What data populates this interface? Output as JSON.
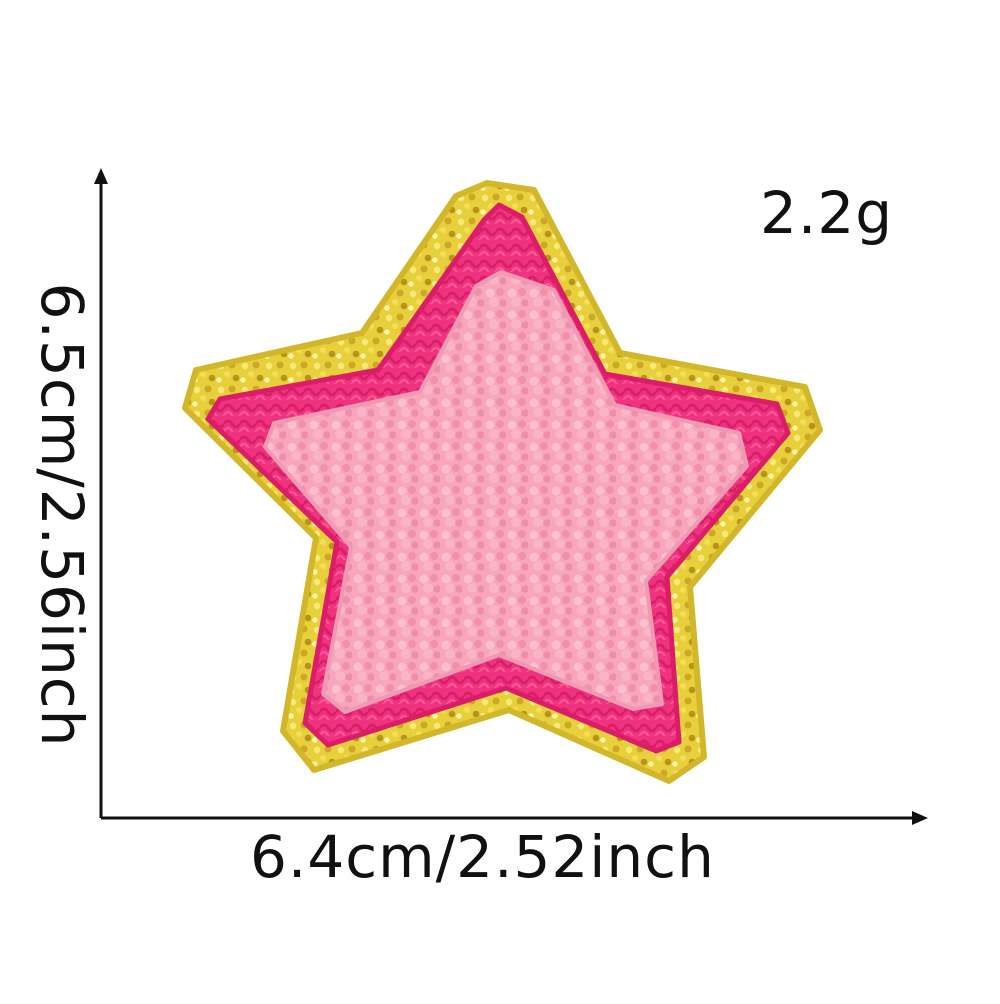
{
  "labels": {
    "weight": "2.2g",
    "width": "6.4cm/2.52inch",
    "height": "6.5cm/2.56inch"
  },
  "product": {
    "icon": "star-patch-icon",
    "colors": {
      "outer_border": "#e7d03b",
      "middle_band": "#f0337f",
      "inner_fill": "#f7a6bc",
      "axis": "#111111"
    }
  }
}
